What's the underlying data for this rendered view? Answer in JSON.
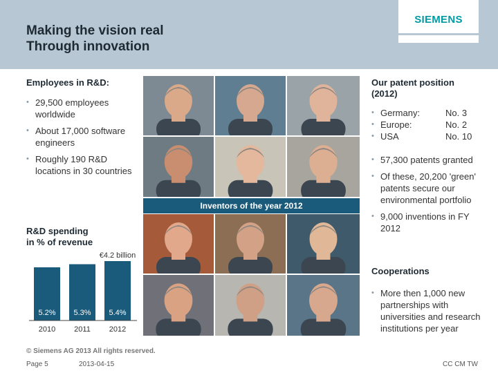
{
  "header": {
    "title_line1": "Making the vision real",
    "title_line2": "Through innovation",
    "logo": "SIEMENS"
  },
  "employees": {
    "heading": "Employees in R&D:",
    "items": [
      " 29,500 employees worldwide",
      "About 17,000 software engineers",
      "Roughly 190 R&D locations in 30 countries"
    ]
  },
  "rd_spending": {
    "heading_line1": "R&D spending",
    "heading_line2": "in % of revenue",
    "annotation": "€4.2 billion"
  },
  "chart_data": {
    "type": "bar",
    "categories": [
      "2010",
      "2011",
      "2012"
    ],
    "values": [
      5.2,
      5.3,
      5.4
    ],
    "data_labels": [
      "5.2%",
      "5.3%",
      "5.4%"
    ],
    "bar_color": "#1a5a7a",
    "annotation": "€4.2 billion"
  },
  "photos": {
    "banner": "Inventors of the year 2012"
  },
  "patents": {
    "heading_line1": "Our patent position",
    "heading_line2": "(2012)",
    "rows": [
      {
        "region": "Germany:",
        "rank": "No. 3"
      },
      {
        "region": "Europe:",
        "rank": "No. 2"
      },
      {
        "region": "USA",
        "rank": "No. 10"
      }
    ],
    "items": [
      "57,300 patents granted",
      "Of these, 20,200 'green' patents secure our environmental portfolio",
      "9,000 inventions in FY 2012"
    ]
  },
  "cooperations": {
    "heading": "Cooperations",
    "items": [
      "More then 1,000 new partnerships with universities and research institutions per year"
    ]
  },
  "footer": {
    "copyright": "© Siemens AG 2013 All rights reserved.",
    "page": "Page 5",
    "date": "2013-04-15",
    "dept": "CC CM TW"
  },
  "colors": {
    "header_bg": "#b7c7d3",
    "accent": "#009aa4",
    "bar": "#1a5a7a"
  }
}
